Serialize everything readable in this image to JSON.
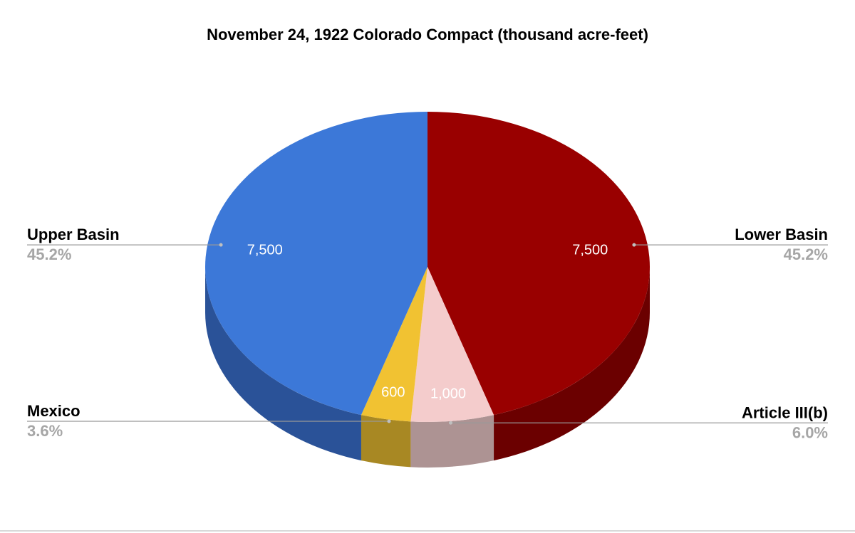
{
  "chart_data": {
    "type": "pie",
    "title": "November 24, 1922 Colorado Compact (thousand acre-feet)",
    "slices": [
      {
        "name": "Lower Basin",
        "value": 7500,
        "value_label": "7,500",
        "percent_label": "45.2%",
        "color": "#990000",
        "side_color": "#6b0000"
      },
      {
        "name": "Article III(b)",
        "value": 1000,
        "value_label": "1,000",
        "percent_label": "6.0%",
        "color": "#f4cccc",
        "side_color": "#ad9393"
      },
      {
        "name": "Mexico",
        "value": 600,
        "value_label": "600",
        "percent_label": "3.6%",
        "color": "#f1c232",
        "side_color": "#a88823"
      },
      {
        "name": "Upper Basin",
        "value": 7500,
        "value_label": "7,500",
        "percent_label": "45.2%",
        "color": "#3c78d8",
        "side_color": "#2a5298"
      }
    ],
    "legend": "outside-labels"
  }
}
